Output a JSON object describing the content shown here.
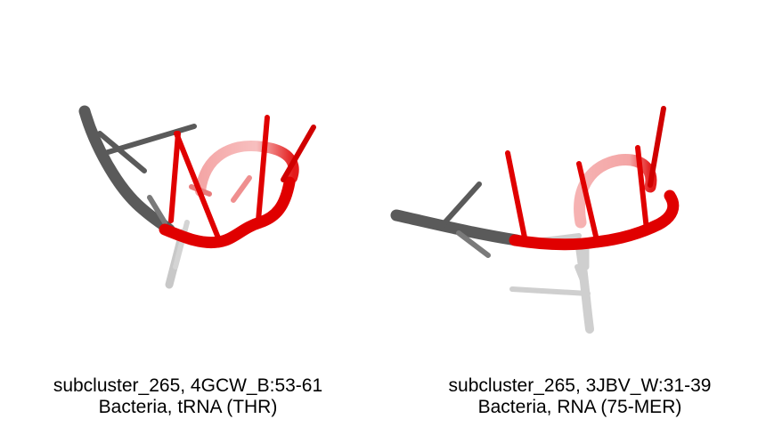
{
  "colors": {
    "backbone": "#5a5a5a",
    "highlight": "#e00000",
    "faded": "#c8c8c8",
    "background": "#ffffff"
  },
  "panels": [
    {
      "title": "subcluster_265, 4GCW_B:53-61",
      "subtitle": "Bacteria, tRNA (THR)"
    },
    {
      "title": "subcluster_265, 3JBV_W:31-39",
      "subtitle": "Bacteria, RNA (75-MER)"
    }
  ]
}
